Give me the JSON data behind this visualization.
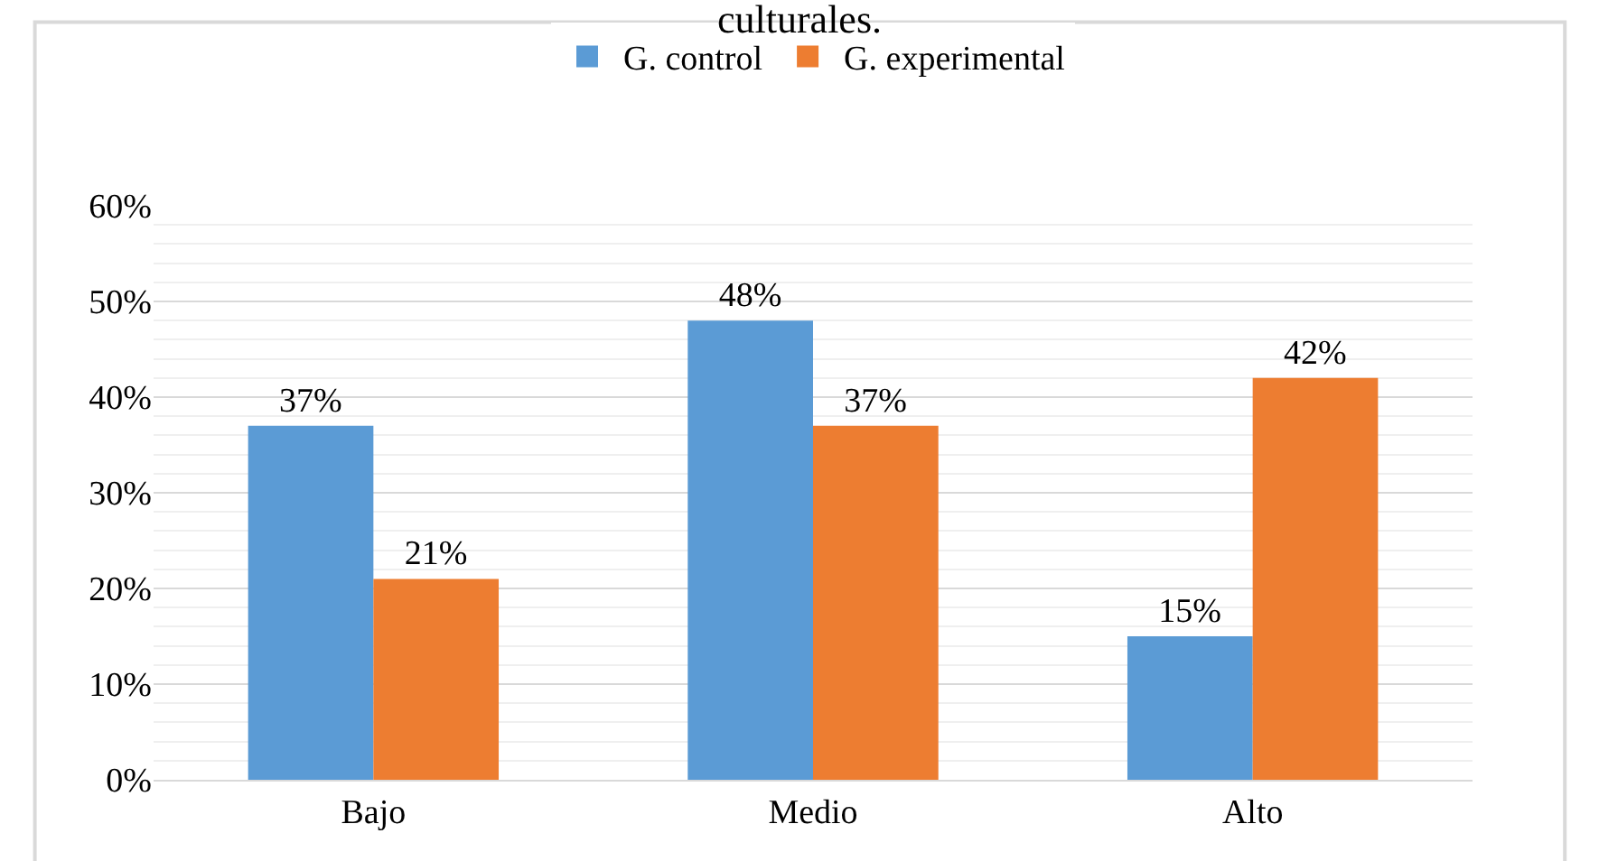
{
  "chart_data": {
    "type": "bar",
    "title": "culturales.",
    "categories": [
      "Bajo",
      "Medio",
      "Alto"
    ],
    "series": [
      {
        "name": "G. control",
        "color": "#5b9bd5",
        "values": [
          37,
          48,
          15
        ],
        "value_labels": [
          "37%",
          "48%",
          "15%"
        ]
      },
      {
        "name": "G. experimental",
        "color": "#ed7d31",
        "values": [
          21,
          37,
          42
        ],
        "value_labels": [
          "21%",
          "37%",
          "42%"
        ]
      }
    ],
    "ylim": [
      0,
      60
    ],
    "yticks": [
      {
        "value": 0,
        "label": "0%"
      },
      {
        "value": 2,
        "label": null
      },
      {
        "value": 4,
        "label": null
      },
      {
        "value": 6,
        "label": null
      },
      {
        "value": 8,
        "label": null
      },
      {
        "value": 10,
        "label": "10%"
      },
      {
        "value": 12,
        "label": null
      },
      {
        "value": 14,
        "label": null
      },
      {
        "value": 16,
        "label": null
      },
      {
        "value": 18,
        "label": null
      },
      {
        "value": 20,
        "label": "20%"
      },
      {
        "value": 22,
        "label": null
      },
      {
        "value": 24,
        "label": null
      },
      {
        "value": 26,
        "label": null
      },
      {
        "value": 28,
        "label": null
      },
      {
        "value": 30,
        "label": "30%"
      },
      {
        "value": 32,
        "label": null
      },
      {
        "value": 34,
        "label": null
      },
      {
        "value": 36,
        "label": null
      },
      {
        "value": 38,
        "label": null
      },
      {
        "value": 40,
        "label": "40%"
      },
      {
        "value": 42,
        "label": null
      },
      {
        "value": 44,
        "label": null
      },
      {
        "value": 46,
        "label": null
      },
      {
        "value": 48,
        "label": null
      },
      {
        "value": 50,
        "label": "50%"
      },
      {
        "value": 52,
        "label": null
      },
      {
        "value": 54,
        "label": null
      },
      {
        "value": 56,
        "label": null
      },
      {
        "value": 58,
        "label": null
      },
      {
        "value": 60,
        "label": "60%"
      }
    ],
    "grid": "y",
    "legend": "top"
  }
}
